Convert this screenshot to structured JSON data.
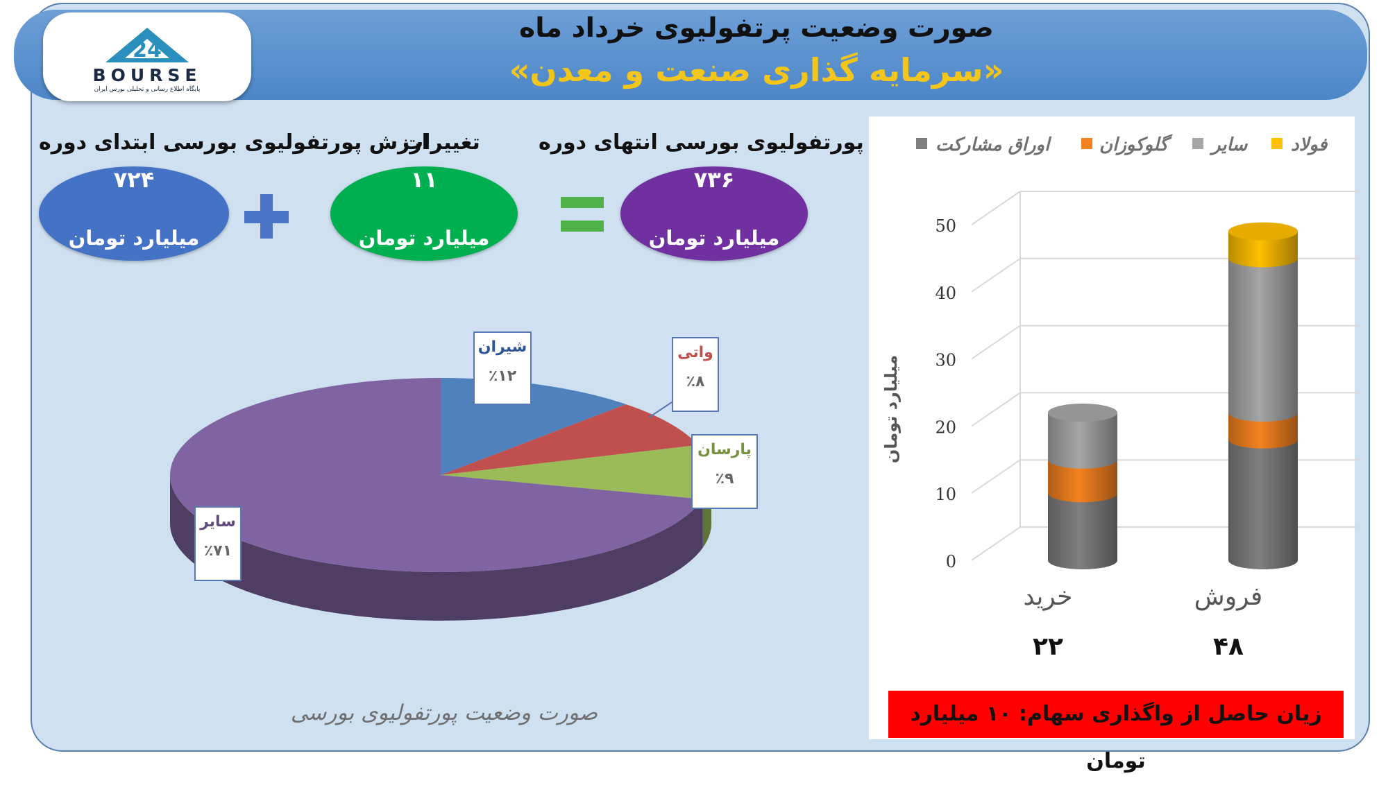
{
  "header": {
    "title": "صورت وضعیت پرتفولیوی خرداد ماه",
    "subtitle": "«سرمایه گذاری صنعت و معدن»",
    "logo_text": "BOURSE",
    "logo_number": "24",
    "logo_subtext": "پایگاه اطلاع رسانی و تحلیلی بورس ایران"
  },
  "summary": {
    "start_label": "ارزش پورتفولیوی بورسی ابتدای دوره",
    "start_value": "۷۲۴",
    "change_label": "تغییرات",
    "change_value": "۱۱",
    "end_label": "ارزش پورتفولیوی بورسی انتهای دوره",
    "end_value": "۷۳۶",
    "unit": "میلیارد تومان",
    "colors": {
      "start": "#4472c4",
      "change": "#00b050",
      "end": "#7030a0",
      "plus": "#4b74c4",
      "equals": "#52b24a"
    }
  },
  "pie_caption": "صورت وضعیت پورتفولیوی بورسی",
  "loss_note": "زیان حاصل از واگذاری سهام: ۱۰ میلیارد تومان",
  "chart_data": [
    {
      "type": "pie",
      "title": "صورت وضعیت پورتفولیوی بورسی",
      "slices": [
        {
          "label": "شیران",
          "value": 12,
          "display": "٪۱۲",
          "color": "#4f81bd"
        },
        {
          "label": "واتی",
          "value": 8,
          "display": "٪۸",
          "color": "#c0504d"
        },
        {
          "label": "پارسان",
          "value": 9,
          "display": "٪۹",
          "color": "#9bbb59"
        },
        {
          "label": "سایر",
          "value": 71,
          "display": "٪۷۱",
          "color": "#8064a2"
        }
      ],
      "label_colors": {
        "شیران": "#2f5597",
        "واتی": "#c0504d",
        "پارسان": "#76923c",
        "سایر": "#604a7b"
      }
    },
    {
      "type": "bar",
      "stacked": true,
      "ylabel": "میلیارد تومان",
      "ylim": [
        0,
        50
      ],
      "yticks": [
        0,
        10,
        20,
        30,
        40,
        50
      ],
      "categories": [
        "خرید",
        "فروش"
      ],
      "totals": [
        "۲۲",
        "۴۸"
      ],
      "series": [
        {
          "name": "اوراق مشارکت",
          "color": "#7f7f7f",
          "values": [
            10,
            18
          ]
        },
        {
          "name": "گلوکوزان",
          "color": "#f58220",
          "values": [
            5,
            4
          ]
        },
        {
          "name": "سایر",
          "color": "#a6a6a6",
          "values": [
            7,
            23
          ]
        },
        {
          "name": "فولاد",
          "color": "#ffc000",
          "values": [
            0,
            4
          ]
        }
      ],
      "legend_order": [
        "فولاد",
        "سایر",
        "گلوکوزان",
        "اوراق مشارکت"
      ],
      "legend_position": "top",
      "grid": true
    }
  ]
}
